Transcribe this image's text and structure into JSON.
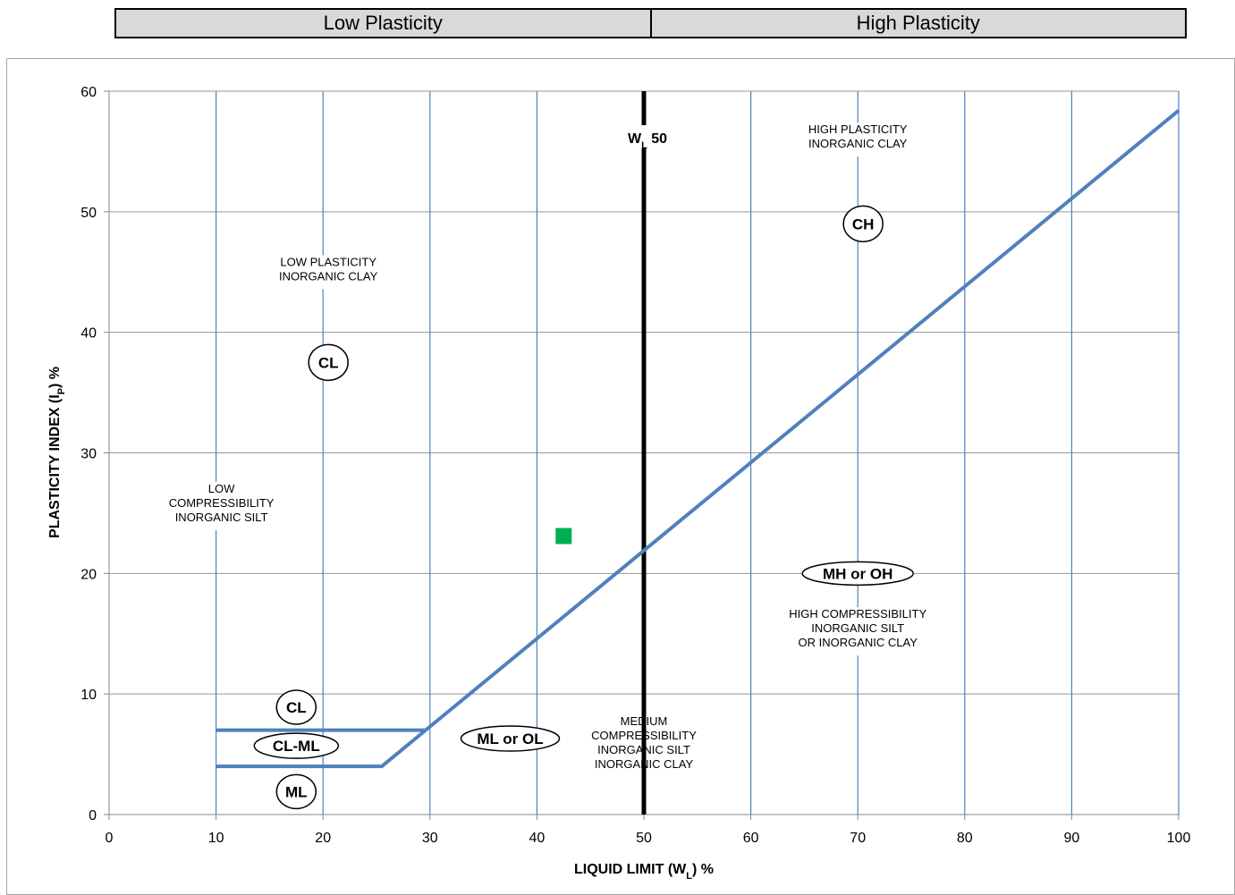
{
  "header": {
    "left_label": "Low Plasticity",
    "right_label": "High Plasticity"
  },
  "chart_data": {
    "type": "scatter",
    "title": "",
    "xlabel": "LIQUID LIMIT (W",
    "xlabel_sub": "L",
    "xlabel_tail": ") %",
    "ylabel": "PLASTICITY INDEX (I",
    "ylabel_sub": "P",
    "ylabel_tail": ") %",
    "xlim": [
      0,
      100
    ],
    "ylim": [
      0,
      60
    ],
    "xticks": [
      0,
      10,
      20,
      30,
      40,
      50,
      60,
      70,
      80,
      90,
      100
    ],
    "yticks": [
      0,
      10,
      20,
      30,
      40,
      50,
      60
    ],
    "grid": true,
    "points": [
      {
        "x": 42.5,
        "y": 23.1,
        "color": "#00b050",
        "marker": "square"
      }
    ],
    "a_line": {
      "color": "#4f81bd",
      "x": [
        10,
        25.5,
        29.6,
        100
      ],
      "y": [
        4,
        4,
        7,
        58.4
      ]
    },
    "cl_ml_upper": {
      "x": [
        10,
        29.6
      ],
      "y": [
        7,
        7
      ]
    },
    "wl50_line": {
      "x": 50,
      "label": "W",
      "label_sub": "L",
      "label_tail": " 50",
      "color": "#000000"
    },
    "zone_labels": [
      {
        "lines": [
          "HIGH PLASTICITY",
          "INORGANIC CLAY"
        ],
        "x": 70,
        "y": 56.5
      },
      {
        "lines": [
          "LOW PLASTICITY",
          "INORGANIC CLAY"
        ],
        "x": 20.5,
        "y": 45.5
      },
      {
        "lines": [
          "LOW",
          "COMPRESSIBILITY",
          "INORGANIC SILT"
        ],
        "x": 10.5,
        "y": 26.7
      },
      {
        "lines": [
          "HIGH COMPRESSIBILITY",
          "INORGANIC SILT",
          "OR INORGANIC CLAY"
        ],
        "x": 70,
        "y": 16.3
      },
      {
        "lines": [
          "MEDIUM",
          "COMPRESSIBILITY",
          "INORGANIC SILT",
          "INORGANIC CLAY"
        ],
        "x": 50,
        "y": 7.4
      }
    ],
    "badges": [
      {
        "text": "CH",
        "x": 70.5,
        "y": 49.0,
        "rx": 22,
        "ry": 20
      },
      {
        "text": "CL",
        "x": 20.5,
        "y": 37.5,
        "rx": 22,
        "ry": 20
      },
      {
        "text": "MH or OH",
        "x": 70,
        "y": 20.0,
        "rx": 62,
        "ry": 13
      },
      {
        "text": "CL",
        "x": 17.5,
        "y": 8.9,
        "rx": 22,
        "ry": 19
      },
      {
        "text": "CL-ML",
        "x": 17.5,
        "y": 5.7,
        "rx": 47,
        "ry": 14
      },
      {
        "text": "ML or OL",
        "x": 37.5,
        "y": 6.3,
        "rx": 55,
        "ry": 14
      },
      {
        "text": "ML",
        "x": 17.5,
        "y": 1.9,
        "rx": 22,
        "ry": 19
      }
    ],
    "colors": {
      "grid_vertical": "#4f81bd",
      "grid_horizontal": "#969696",
      "axis": "#868686"
    }
  }
}
